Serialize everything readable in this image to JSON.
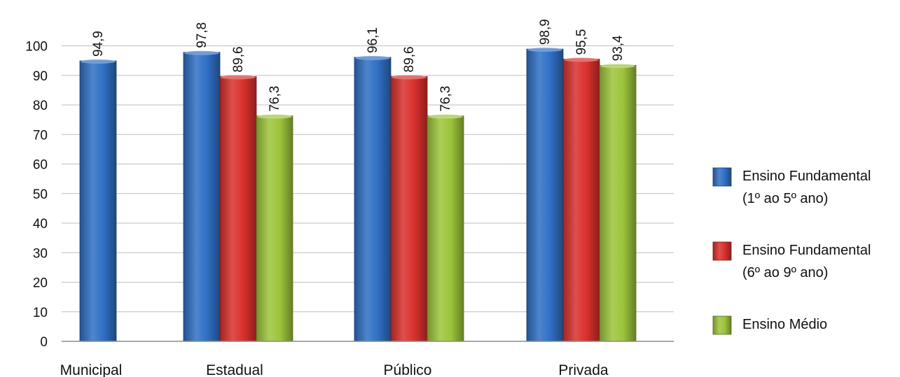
{
  "chart_data": {
    "type": "bar",
    "title": "",
    "xlabel": "",
    "ylabel": "",
    "ylim": [
      0,
      100
    ],
    "yticks": [
      "0",
      "10",
      "20",
      "30",
      "40",
      "50",
      "60",
      "70",
      "80",
      "90",
      "100"
    ],
    "grid": true,
    "legend_position": "right",
    "categories": [
      "Municipal",
      "Estadual",
      "Público",
      "Privada"
    ],
    "series": [
      {
        "name": "Ensino Fundamental (1º ao 5º ano)",
        "legend_lines": [
          "Ensino Fundamental",
          "(1º ao 5º ano)"
        ],
        "color": "#2f6fc4",
        "values": [
          94.9,
          97.8,
          96.1,
          98.9
        ],
        "labels": [
          "94,9",
          "97,8",
          "96,1",
          "98,9"
        ]
      },
      {
        "name": "Ensino Fundamental (6º ao 9º ano)",
        "legend_lines": [
          "Ensino Fundamental",
          "(6º ao 9º ano)"
        ],
        "color": "#d9302c",
        "values": [
          null,
          89.6,
          89.6,
          95.5
        ],
        "labels": [
          "",
          "89,6",
          "89,6",
          "95,5"
        ]
      },
      {
        "name": "Ensino Médio",
        "legend_lines": [
          "Ensino Médio"
        ],
        "color": "#9cc43a",
        "values": [
          null,
          76.3,
          76.3,
          93.4
        ],
        "labels": [
          "",
          "76,3",
          "76,3",
          "93,4"
        ]
      }
    ]
  }
}
